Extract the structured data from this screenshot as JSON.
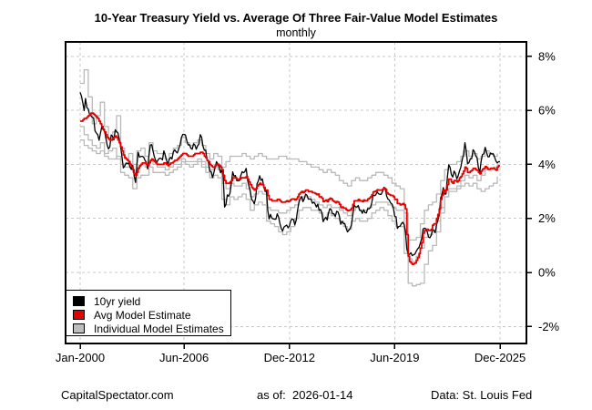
{
  "header": {
    "title": "10-Year Treasury Yield vs. Average Of Three Fair-Value Model Estimates",
    "subtitle": "monthly"
  },
  "legend": {
    "items": [
      {
        "label": "10yr yield",
        "color": "#000000"
      },
      {
        "label": "Avg Model Estimate",
        "color": "#e60000"
      },
      {
        "label": "Individual Model Estimates",
        "color": "#bdbdbd"
      }
    ]
  },
  "footer": {
    "left": "CapitalSpectator.com",
    "center": "as of:  2026-01-14",
    "right": "Data: St. Louis Fed"
  },
  "colors": {
    "grid": "#c9c9c9",
    "axis": "#000000",
    "background": "#ffffff",
    "red_series": "#e60000",
    "gray_series": "#b9b9b9"
  },
  "chart_data": {
    "type": "line",
    "title": "10-Year Treasury Yield vs. Average Of Three Fair-Value Model Estimates",
    "subtitle": "monthly",
    "xlabel": "",
    "ylabel": "",
    "grid": "dashed",
    "legend_position": "bottom-left",
    "ylim": [
      -2.6,
      8.5
    ],
    "x_start": 2000.0,
    "x_end": 2025.9167,
    "y_ticks": [
      {
        "label": "8%",
        "v": 8
      },
      {
        "label": "6%",
        "v": 6
      },
      {
        "label": "4%",
        "v": 4
      },
      {
        "label": "2%",
        "v": 2
      },
      {
        "label": "0%",
        "v": 0
      },
      {
        "label": "-2%",
        "v": -2
      }
    ],
    "x_ticks": [
      {
        "label": "Jan-2000",
        "t": 2000.0
      },
      {
        "label": "Jun-2006",
        "t": 2006.4167
      },
      {
        "label": "Dec-2012",
        "t": 2012.9167
      },
      {
        "label": "Jun-2019",
        "t": 2019.4167
      },
      {
        "label": "Dec-2025",
        "t": 2025.9167
      }
    ],
    "series": [
      {
        "name": "Individual Model Estimate 1",
        "key": "model-1",
        "color": "#b9b9b9",
        "width": 1.3,
        "freq": "quarterly",
        "interp": "step",
        "values": [
          7.0,
          7.5,
          6.5,
          5.5,
          5.8,
          6.3,
          5.4,
          4.9,
          5.2,
          5.8,
          4.6,
          4.2,
          4.4,
          4.0,
          4.5,
          4.6,
          4.3,
          4.8,
          4.5,
          4.4,
          4.4,
          4.2,
          4.4,
          4.6,
          4.7,
          5.0,
          4.8,
          4.7,
          4.8,
          4.9,
          4.7,
          4.4,
          4.2,
          4.4,
          4.3,
          3.9,
          4.1,
          4.3,
          4.3,
          4.3,
          4.4,
          4.3,
          4.2,
          4.3,
          4.4,
          4.3,
          4.2,
          4.2,
          4.2,
          4.3,
          4.3,
          4.2,
          4.2,
          4.2,
          4.1,
          4.1,
          4.0,
          3.9,
          3.9,
          3.8,
          3.7,
          3.8,
          3.7,
          3.6,
          3.4,
          3.3,
          3.2,
          3.4,
          3.5,
          3.4,
          3.4,
          3.5,
          3.6,
          3.7,
          3.7,
          3.6,
          3.5,
          3.3,
          3.2,
          3.1,
          2.2,
          1.2,
          1.2,
          1.3,
          1.8,
          2.3,
          2.5,
          2.6,
          2.9,
          3.4,
          3.8,
          4.0,
          4.0,
          4.1,
          4.3,
          4.5,
          4.3,
          4.4,
          4.2,
          4.3,
          4.5,
          4.4,
          4.3,
          4.4
        ]
      },
      {
        "name": "Individual Model Estimate 2",
        "key": "model-2",
        "color": "#b9b9b9",
        "width": 1.3,
        "freq": "quarterly",
        "interp": "step",
        "values": [
          4.9,
          4.7,
          4.6,
          4.5,
          4.4,
          4.5,
          4.3,
          4.2,
          4.2,
          4.3,
          4.0,
          3.9,
          3.9,
          3.7,
          3.9,
          4.0,
          3.9,
          4.1,
          4.0,
          3.9,
          3.9,
          3.8,
          3.9,
          4.0,
          4.0,
          4.2,
          4.1,
          4.1,
          4.1,
          4.2,
          4.1,
          3.9,
          3.8,
          3.9,
          3.8,
          3.3,
          3.1,
          3.3,
          3.2,
          3.2,
          3.3,
          3.1,
          2.8,
          2.9,
          3.0,
          2.9,
          2.4,
          2.3,
          2.3,
          2.2,
          2.2,
          2.3,
          2.4,
          2.5,
          2.7,
          2.8,
          2.8,
          2.7,
          2.6,
          2.5,
          2.4,
          2.5,
          2.4,
          2.4,
          2.3,
          2.2,
          2.1,
          2.3,
          2.4,
          2.3,
          2.3,
          2.4,
          2.5,
          2.6,
          2.6,
          2.6,
          2.5,
          2.4,
          2.3,
          2.3,
          1.5,
          0.5,
          0.4,
          0.6,
          0.9,
          1.3,
          1.4,
          1.5,
          1.9,
          2.4,
          2.8,
          3.0,
          3.0,
          3.1,
          3.2,
          3.3,
          3.2,
          3.3,
          3.1,
          3.0,
          3.1,
          3.2,
          3.3,
          3.55
        ]
      },
      {
        "name": "Individual Model Estimate 3",
        "key": "model-3",
        "color": "#b9b9b9",
        "width": 1.3,
        "freq": "quarterly",
        "interp": "step",
        "values": [
          5.4,
          5.1,
          4.9,
          4.7,
          4.6,
          4.8,
          4.4,
          4.5,
          4.6,
          4.2,
          3.7,
          3.6,
          3.5,
          3.1,
          3.5,
          3.6,
          3.6,
          3.9,
          3.7,
          3.7,
          3.7,
          3.6,
          3.7,
          3.8,
          3.9,
          4.1,
          4.0,
          3.9,
          4.0,
          4.1,
          3.9,
          3.7,
          3.5,
          3.6,
          3.5,
          2.7,
          2.5,
          2.8,
          2.7,
          2.8,
          2.9,
          2.7,
          2.3,
          2.5,
          2.6,
          2.5,
          1.9,
          1.8,
          1.7,
          1.5,
          1.4,
          1.5,
          1.7,
          2.0,
          2.3,
          2.4,
          2.4,
          2.3,
          2.3,
          2.2,
          2.0,
          2.2,
          2.1,
          2.0,
          1.9,
          1.7,
          1.6,
          1.9,
          2.0,
          1.9,
          1.9,
          2.0,
          2.2,
          2.3,
          2.4,
          2.3,
          2.1,
          1.9,
          1.7,
          1.7,
          0.7,
          -0.4,
          -0.5,
          -0.45,
          -0.4,
          0.3,
          0.8,
          1.0,
          1.5,
          2.2,
          2.8,
          3.1,
          3.1,
          3.2,
          3.4,
          3.6,
          3.5,
          3.6,
          3.4,
          3.6,
          3.8,
          3.8,
          3.9,
          4.0
        ]
      },
      {
        "name": "10yr yield",
        "key": "10yr-yield",
        "color": "#000000",
        "width": 1.3,
        "freq": "monthly",
        "interp": "linear",
        "values": [
          6.66,
          6.52,
          6.26,
          5.99,
          6.44,
          6.1,
          6.05,
          5.83,
          5.8,
          5.74,
          5.72,
          5.24,
          5.16,
          5.1,
          4.89,
          5.14,
          5.39,
          5.28,
          5.24,
          4.97,
          4.73,
          4.57,
          4.65,
          5.09,
          5.04,
          4.91,
          5.28,
          5.21,
          5.16,
          4.93,
          4.65,
          4.26,
          3.87,
          3.94,
          4.05,
          4.03,
          4.05,
          3.9,
          3.81,
          3.96,
          3.57,
          3.33,
          3.98,
          4.45,
          4.27,
          4.29,
          4.3,
          4.27,
          4.15,
          4.08,
          3.83,
          4.35,
          4.72,
          4.73,
          4.5,
          4.28,
          4.13,
          4.1,
          4.19,
          4.23,
          4.22,
          4.17,
          4.5,
          4.34,
          4.14,
          4.0,
          4.18,
          4.26,
          4.2,
          4.46,
          4.54,
          4.47,
          4.42,
          4.57,
          4.72,
          4.99,
          5.11,
          5.11,
          5.09,
          4.88,
          4.72,
          4.73,
          4.6,
          4.56,
          4.76,
          4.72,
          4.56,
          4.69,
          4.75,
          5.1,
          5.0,
          4.67,
          4.52,
          4.53,
          4.15,
          4.1,
          3.74,
          3.74,
          3.51,
          3.68,
          3.88,
          4.1,
          4.01,
          3.89,
          3.69,
          3.81,
          3.53,
          2.42,
          2.52,
          2.87,
          2.82,
          2.93,
          3.29,
          3.72,
          3.56,
          3.59,
          3.4,
          3.39,
          3.4,
          3.59,
          3.73,
          3.69,
          3.73,
          3.85,
          3.42,
          3.2,
          3.01,
          2.7,
          2.65,
          2.54,
          2.76,
          3.29,
          3.39,
          3.58,
          3.41,
          3.46,
          3.17,
          3.0,
          3.0,
          2.3,
          1.98,
          2.15,
          2.01,
          1.98,
          1.97,
          1.97,
          2.17,
          2.05,
          1.8,
          1.62,
          1.53,
          1.68,
          1.72,
          1.75,
          1.65,
          1.72,
          1.91,
          1.98,
          1.96,
          1.76,
          1.93,
          2.3,
          2.58,
          2.74,
          2.81,
          2.62,
          2.72,
          2.9,
          2.86,
          2.71,
          2.72,
          2.71,
          2.56,
          2.6,
          2.54,
          2.42,
          2.53,
          2.3,
          2.33,
          2.21,
          1.88,
          1.98,
          2.04,
          1.94,
          2.2,
          2.36,
          2.32,
          2.17,
          2.17,
          2.07,
          2.26,
          2.24,
          2.09,
          1.78,
          1.89,
          1.81,
          1.81,
          1.64,
          1.5,
          1.56,
          1.63,
          1.76,
          2.14,
          2.49,
          2.43,
          2.42,
          2.48,
          2.3,
          2.3,
          2.19,
          2.32,
          2.21,
          2.2,
          2.36,
          2.35,
          2.4,
          2.58,
          2.86,
          2.84,
          2.87,
          2.98,
          2.91,
          2.89,
          2.89,
          3.0,
          3.15,
          3.12,
          2.83,
          2.71,
          2.68,
          2.57,
          2.53,
          2.4,
          2.07,
          2.06,
          1.63,
          1.7,
          1.71,
          1.81,
          1.86,
          1.76,
          1.5,
          0.87,
          0.66,
          0.67,
          0.73,
          0.62,
          0.65,
          0.68,
          0.79,
          0.87,
          0.93,
          1.08,
          1.26,
          1.61,
          1.64,
          1.62,
          1.52,
          1.32,
          1.28,
          1.37,
          1.58,
          1.56,
          1.47,
          1.76,
          1.93,
          2.13,
          2.75,
          2.9,
          3.14,
          2.9,
          2.9,
          3.52,
          3.98,
          3.89,
          3.62,
          3.53,
          3.75,
          3.66,
          3.46,
          3.57,
          3.75,
          3.9,
          4.17,
          4.38,
          4.8,
          4.5,
          4.02,
          4.06,
          4.21,
          4.21,
          4.54,
          4.48,
          4.31,
          4.25,
          3.87,
          3.72,
          4.1,
          4.36,
          4.39,
          4.63,
          4.45,
          4.28,
          4.28,
          4.42,
          4.38,
          4.39,
          4.26,
          4.12,
          4.05,
          4.1,
          4.1
        ]
      },
      {
        "name": "Avg Model Estimate",
        "key": "avg-model-estimate",
        "color": "#e60000",
        "width": 1.8,
        "freq": "monthly",
        "interp": "step",
        "values": [
          5.6,
          5.6,
          5.65,
          5.7,
          5.7,
          5.75,
          5.8,
          5.85,
          5.9,
          5.9,
          5.85,
          5.8,
          5.75,
          5.7,
          5.6,
          5.5,
          5.4,
          5.3,
          5.2,
          5.1,
          5.0,
          4.95,
          4.9,
          4.9,
          4.95,
          5.0,
          5.05,
          5.0,
          4.9,
          4.8,
          4.65,
          4.5,
          4.35,
          4.25,
          4.2,
          4.15,
          4.1,
          4.0,
          3.9,
          3.8,
          3.65,
          3.6,
          3.7,
          3.85,
          3.95,
          4.0,
          4.05,
          4.05,
          4.05,
          4.0,
          3.95,
          4.05,
          4.15,
          4.2,
          4.15,
          4.1,
          4.05,
          4.0,
          4.0,
          4.0,
          4.0,
          4.0,
          4.05,
          4.05,
          4.0,
          3.95,
          4.0,
          4.05,
          4.05,
          4.1,
          4.15,
          4.15,
          4.2,
          4.25,
          4.3,
          4.35,
          4.4,
          4.4,
          4.4,
          4.35,
          4.3,
          4.3,
          4.3,
          4.3,
          4.35,
          4.4,
          4.4,
          4.4,
          4.4,
          4.45,
          4.45,
          4.4,
          4.3,
          4.25,
          4.15,
          4.1,
          4.0,
          3.95,
          3.9,
          3.9,
          3.95,
          4.0,
          4.0,
          3.95,
          3.9,
          3.8,
          3.6,
          3.4,
          3.3,
          3.3,
          3.3,
          3.35,
          3.4,
          3.5,
          3.5,
          3.5,
          3.45,
          3.45,
          3.45,
          3.5,
          3.5,
          3.5,
          3.5,
          3.55,
          3.45,
          3.35,
          3.25,
          3.15,
          3.1,
          3.05,
          3.1,
          3.2,
          3.25,
          3.3,
          3.25,
          3.25,
          3.15,
          3.05,
          3.05,
          2.85,
          2.7,
          2.7,
          2.65,
          2.65,
          2.65,
          2.65,
          2.7,
          2.7,
          2.65,
          2.6,
          2.6,
          2.6,
          2.62,
          2.65,
          2.62,
          2.65,
          2.7,
          2.72,
          2.72,
          2.68,
          2.72,
          2.8,
          2.9,
          2.95,
          3.0,
          2.95,
          3.0,
          3.05,
          3.05,
          3.0,
          3.0,
          3.0,
          2.95,
          2.95,
          2.92,
          2.88,
          2.9,
          2.8,
          2.8,
          2.75,
          2.62,
          2.65,
          2.68,
          2.62,
          2.7,
          2.75,
          2.72,
          2.65,
          2.62,
          2.58,
          2.62,
          2.6,
          2.52,
          2.4,
          2.42,
          2.38,
          2.38,
          2.32,
          2.28,
          2.3,
          2.32,
          2.38,
          2.52,
          2.65,
          2.65,
          2.65,
          2.7,
          2.65,
          2.65,
          2.62,
          2.68,
          2.65,
          2.65,
          2.72,
          2.75,
          2.8,
          2.88,
          2.98,
          3.0,
          3.02,
          3.06,
          3.05,
          3.05,
          3.05,
          3.08,
          3.12,
          3.08,
          2.95,
          2.9,
          2.88,
          2.85,
          2.85,
          2.8,
          2.7,
          2.7,
          2.55,
          2.55,
          2.5,
          2.52,
          2.55,
          2.5,
          2.35,
          1.4,
          0.6,
          0.4,
          0.35,
          0.3,
          0.32,
          0.35,
          0.45,
          0.55,
          0.7,
          0.9,
          1.1,
          1.45,
          1.55,
          1.6,
          1.6,
          1.55,
          1.55,
          1.6,
          1.75,
          1.8,
          1.8,
          2.0,
          2.15,
          2.35,
          2.7,
          2.85,
          3.05,
          3.0,
          3.05,
          3.25,
          3.45,
          3.45,
          3.35,
          3.3,
          3.4,
          3.4,
          3.35,
          3.4,
          3.5,
          3.55,
          3.65,
          3.75,
          3.9,
          3.85,
          3.7,
          3.7,
          3.75,
          3.78,
          3.85,
          3.85,
          3.8,
          3.78,
          3.7,
          3.65,
          3.75,
          3.82,
          3.85,
          3.92,
          3.88,
          3.82,
          3.82,
          3.86,
          3.85,
          3.86,
          3.82,
          3.78,
          3.9,
          3.95,
          3.95
        ]
      }
    ]
  }
}
